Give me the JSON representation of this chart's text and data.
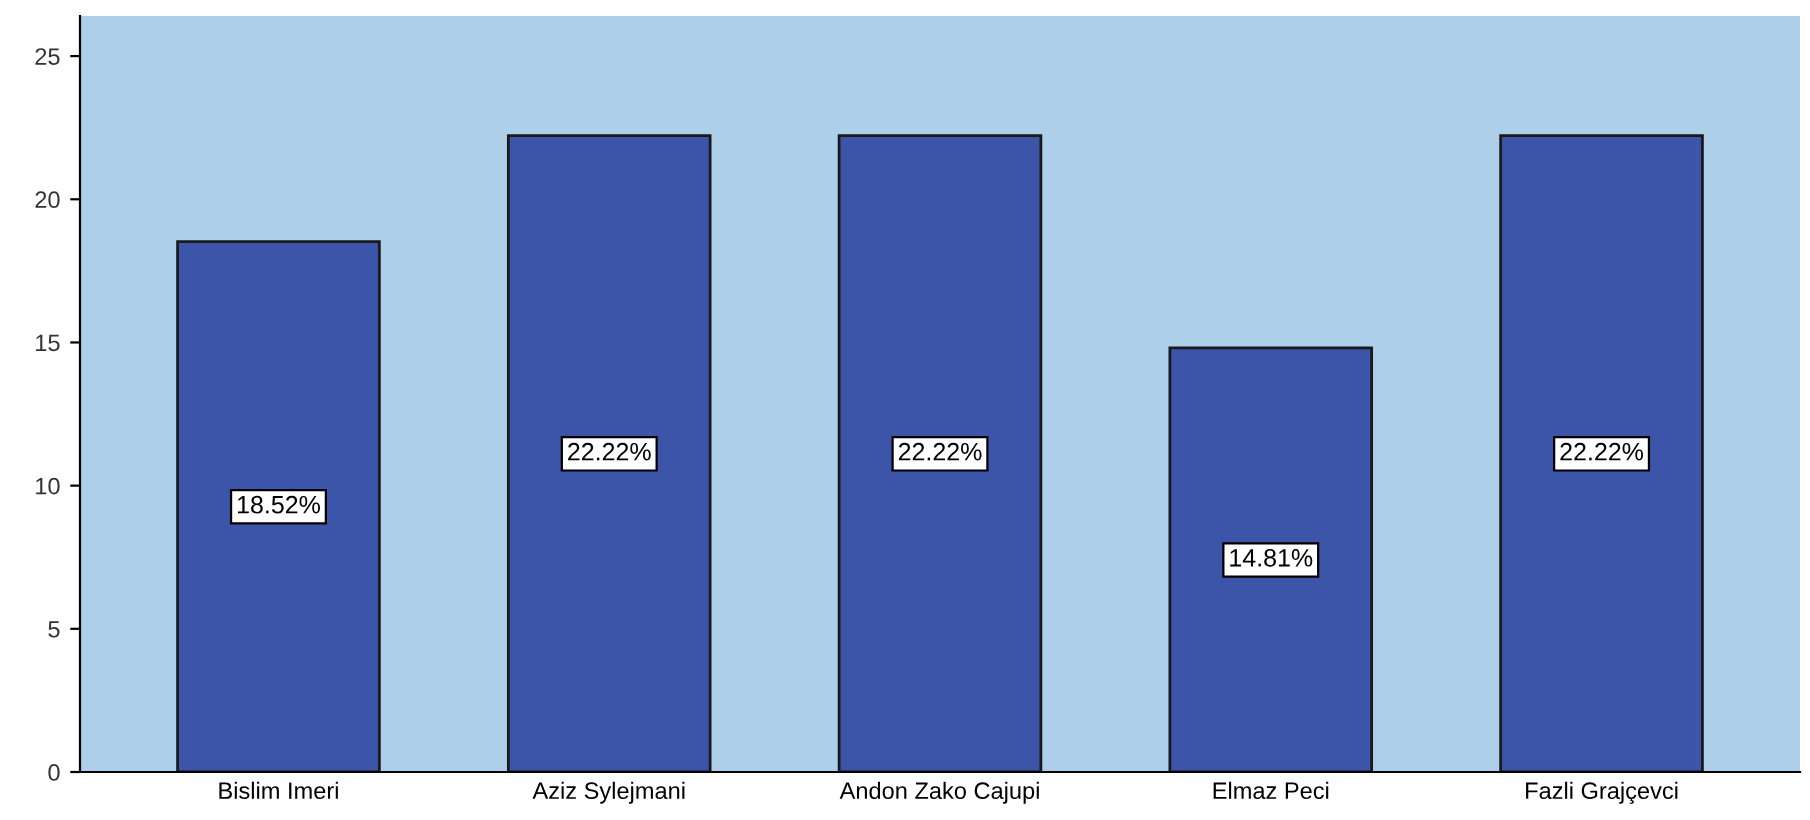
{
  "chart_data": {
    "type": "bar",
    "categories": [
      "Bislim Imeri",
      "Aziz Sylejmani",
      "Andon Zako Cajupi",
      "Elmaz Peci",
      "Fazli Grajçevci"
    ],
    "values": [
      18.52,
      22.22,
      22.22,
      14.81,
      22.22
    ],
    "value_labels": [
      "18.52%",
      "22.22%",
      "22.22%",
      "14.81%",
      "22.22%"
    ],
    "color": "#3d55a8",
    "ylim": [
      0,
      26.4
    ],
    "yticks": [
      0,
      5,
      10,
      15,
      20,
      25
    ],
    "grid": false,
    "legend": false
  }
}
